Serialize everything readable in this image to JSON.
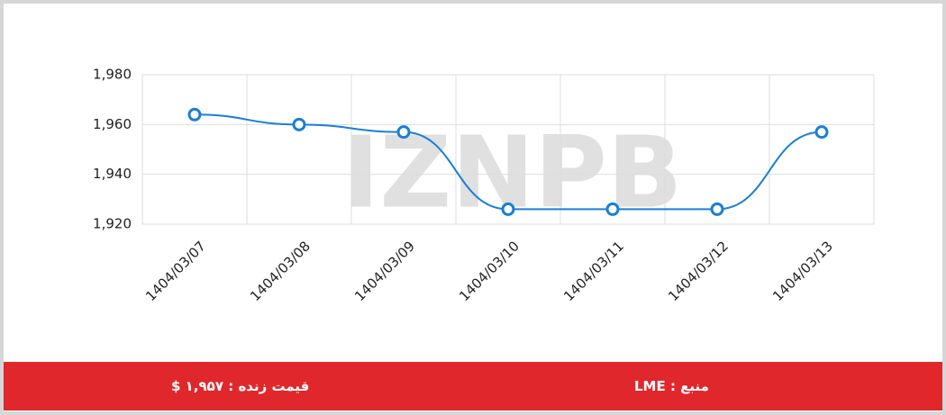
{
  "chart_data": {
    "type": "line",
    "categories": [
      "1404/03/07",
      "1404/03/08",
      "1404/03/09",
      "1404/03/10",
      "1404/03/11",
      "1404/03/12",
      "1404/03/13"
    ],
    "series": [
      {
        "color": "#1a7fd4",
        "values": [
          1964,
          1960,
          1957,
          1926,
          1926,
          1926,
          1957
        ]
      }
    ],
    "ylim": [
      1920,
      1980
    ],
    "yticks": [
      {
        "value": 1920,
        "label": "1,920"
      },
      {
        "value": 1940,
        "label": "1,940"
      },
      {
        "value": 1960,
        "label": "1,960"
      },
      {
        "value": 1980,
        "label": "1,980"
      }
    ],
    "grid": true
  },
  "watermark": "IZNPB",
  "footer": {
    "source": "منبع : LME",
    "live_price": "قیمت زنده : ۱,۹۵۷ $"
  }
}
